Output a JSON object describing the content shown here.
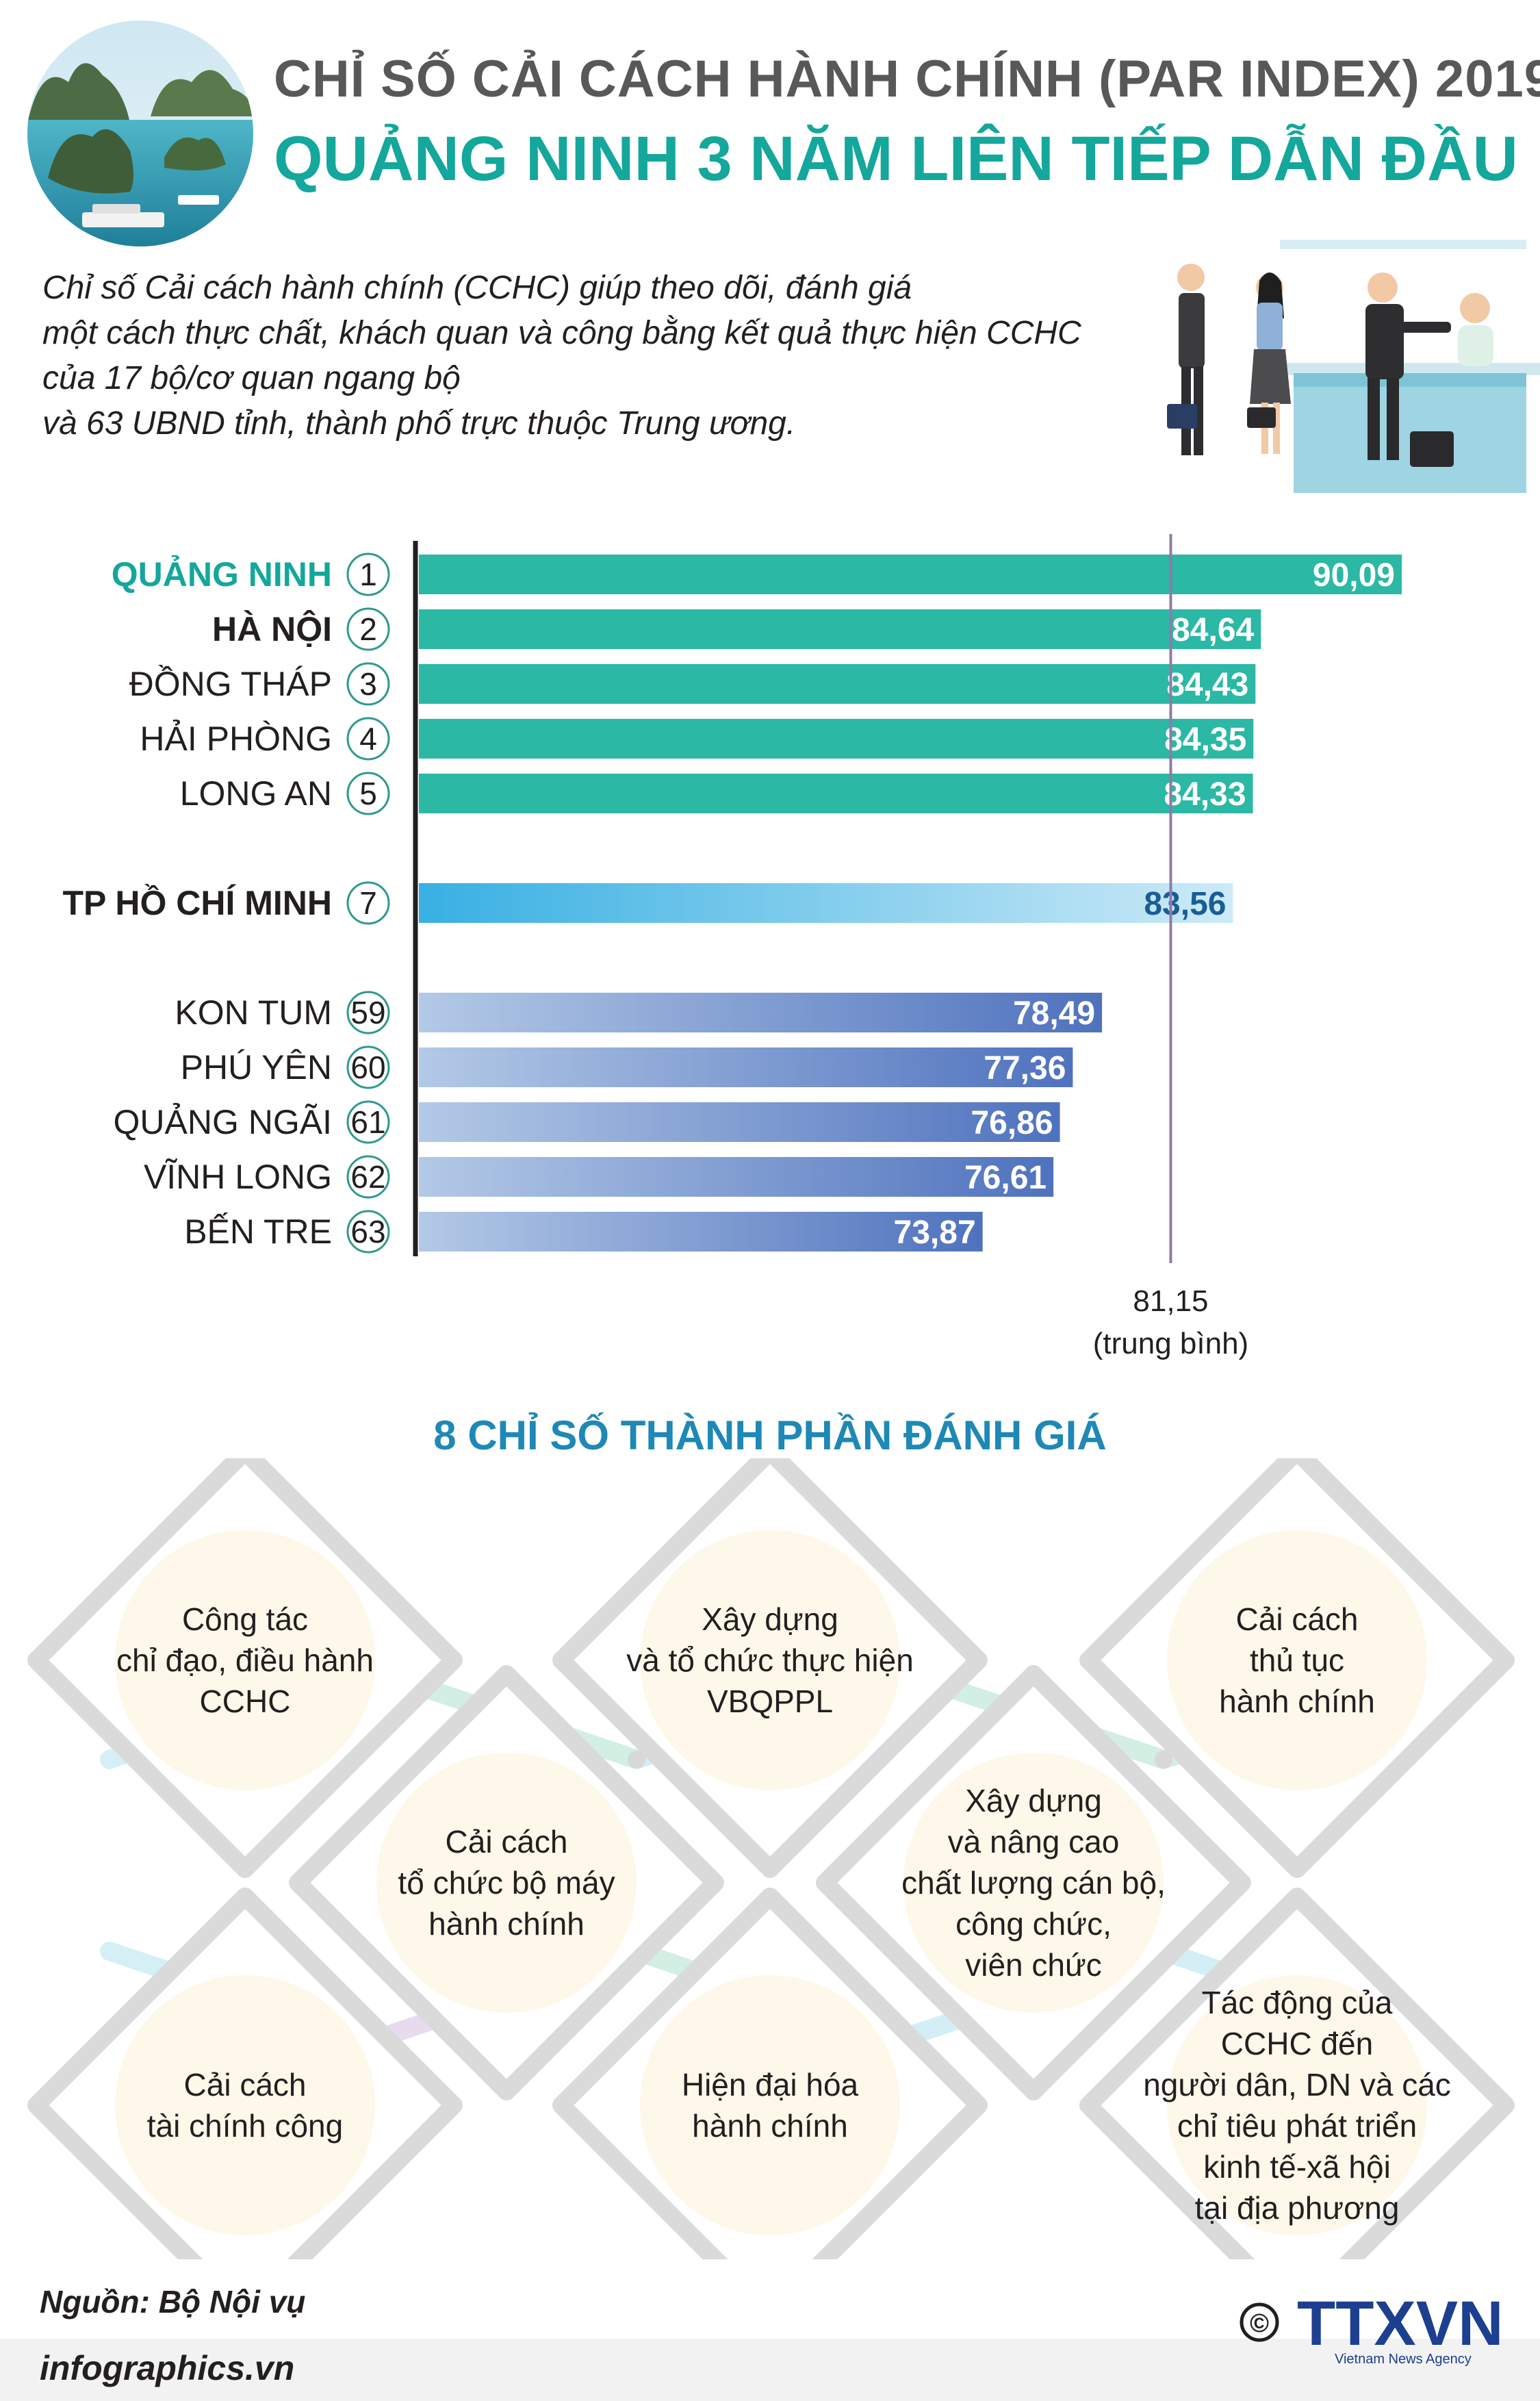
{
  "header": {
    "title": "CHỈ SỐ CẢI CÁCH HÀNH CHÍNH (PAR INDEX) 2019",
    "subtitle": "QUẢNG NINH 3 NĂM LIÊN TIẾP DẪN ĐẦU"
  },
  "intro": [
    "Chỉ số Cải cách hành chính (CCHC) giúp theo dõi, đánh giá",
    "một cách thực chất, khách quan và công bằng kết quả thực hiện CCHC",
    "của 17 bộ/cơ quan ngang bộ",
    "và 63 UBND tỉnh, thành phố trực thuộc Trung ương."
  ],
  "chart_data": {
    "type": "bar",
    "orientation": "horizontal",
    "categories": [
      "QUẢNG NINH",
      "HÀ NỘI",
      "ĐỒNG THÁP",
      "HẢI PHÒNG",
      "LONG AN",
      "TP HỒ CHÍ MINH",
      "KON TUM",
      "PHÚ YÊN",
      "QUẢNG NGÃI",
      "VĨNH LONG",
      "BẾN TRE"
    ],
    "ranks": [
      "1",
      "2",
      "3",
      "4",
      "5",
      "7",
      "59",
      "60",
      "61",
      "62",
      "63"
    ],
    "values": [
      90.09,
      84.64,
      84.43,
      84.35,
      84.33,
      83.56,
      78.49,
      77.36,
      76.86,
      76.61,
      73.87
    ],
    "value_labels": [
      "90,09",
      "84,64",
      "84,43",
      "84,35",
      "84,33",
      "83,56",
      "78,49",
      "77,36",
      "76,86",
      "76,61",
      "73,87"
    ],
    "groups": [
      "top",
      "top",
      "top",
      "top",
      "top",
      "hcm",
      "bottom",
      "bottom",
      "bottom",
      "bottom",
      "bottom"
    ],
    "average": {
      "value": 81.15,
      "label": "81,15",
      "sublabel": "(trung bình)"
    },
    "colors": {
      "top": "#2bb8a5",
      "hcm_start": "#38b0e3",
      "hcm_end": "#cdeaf7",
      "bottom_start": "#b3c9e6",
      "bottom_end": "#4f72be",
      "highlight_label": "#14a79b",
      "average_line": "#8e7aa8"
    }
  },
  "components": {
    "title": "8 CHỈ SỐ THÀNH PHẦN ĐÁNH GIÁ",
    "items": [
      {
        "lines": [
          "Công tác",
          "chỉ đạo, điều hành",
          "CCHC"
        ]
      },
      {
        "lines": [
          "Xây dựng",
          "và tổ chức thực hiện",
          "VBQPPL"
        ]
      },
      {
        "lines": [
          "Cải cách",
          "thủ tục",
          "hành chính"
        ]
      },
      {
        "lines": [
          "Cải cách",
          "tổ chức bộ máy",
          "hành chính"
        ]
      },
      {
        "lines": [
          "Xây dựng",
          "và nâng cao",
          "chất lượng cán bộ,",
          "công chức,",
          "viên chức"
        ]
      },
      {
        "lines": [
          "Cải cách",
          "tài chính công"
        ]
      },
      {
        "lines": [
          "Hiện đại hóa",
          "hành chính"
        ]
      },
      {
        "lines": [
          "Tác động của",
          "CCHC đến",
          "người dân, DN và các",
          "chỉ tiêu phát triển",
          "kinh tế-xã hội",
          "tại địa phương"
        ]
      }
    ]
  },
  "footer": {
    "source": "Nguồn: Bộ Nội vụ",
    "site": "infographics.vn",
    "logo_text": "TTXVN",
    "logo_sub": "Vietnam News Agency",
    "copyright": "©"
  }
}
